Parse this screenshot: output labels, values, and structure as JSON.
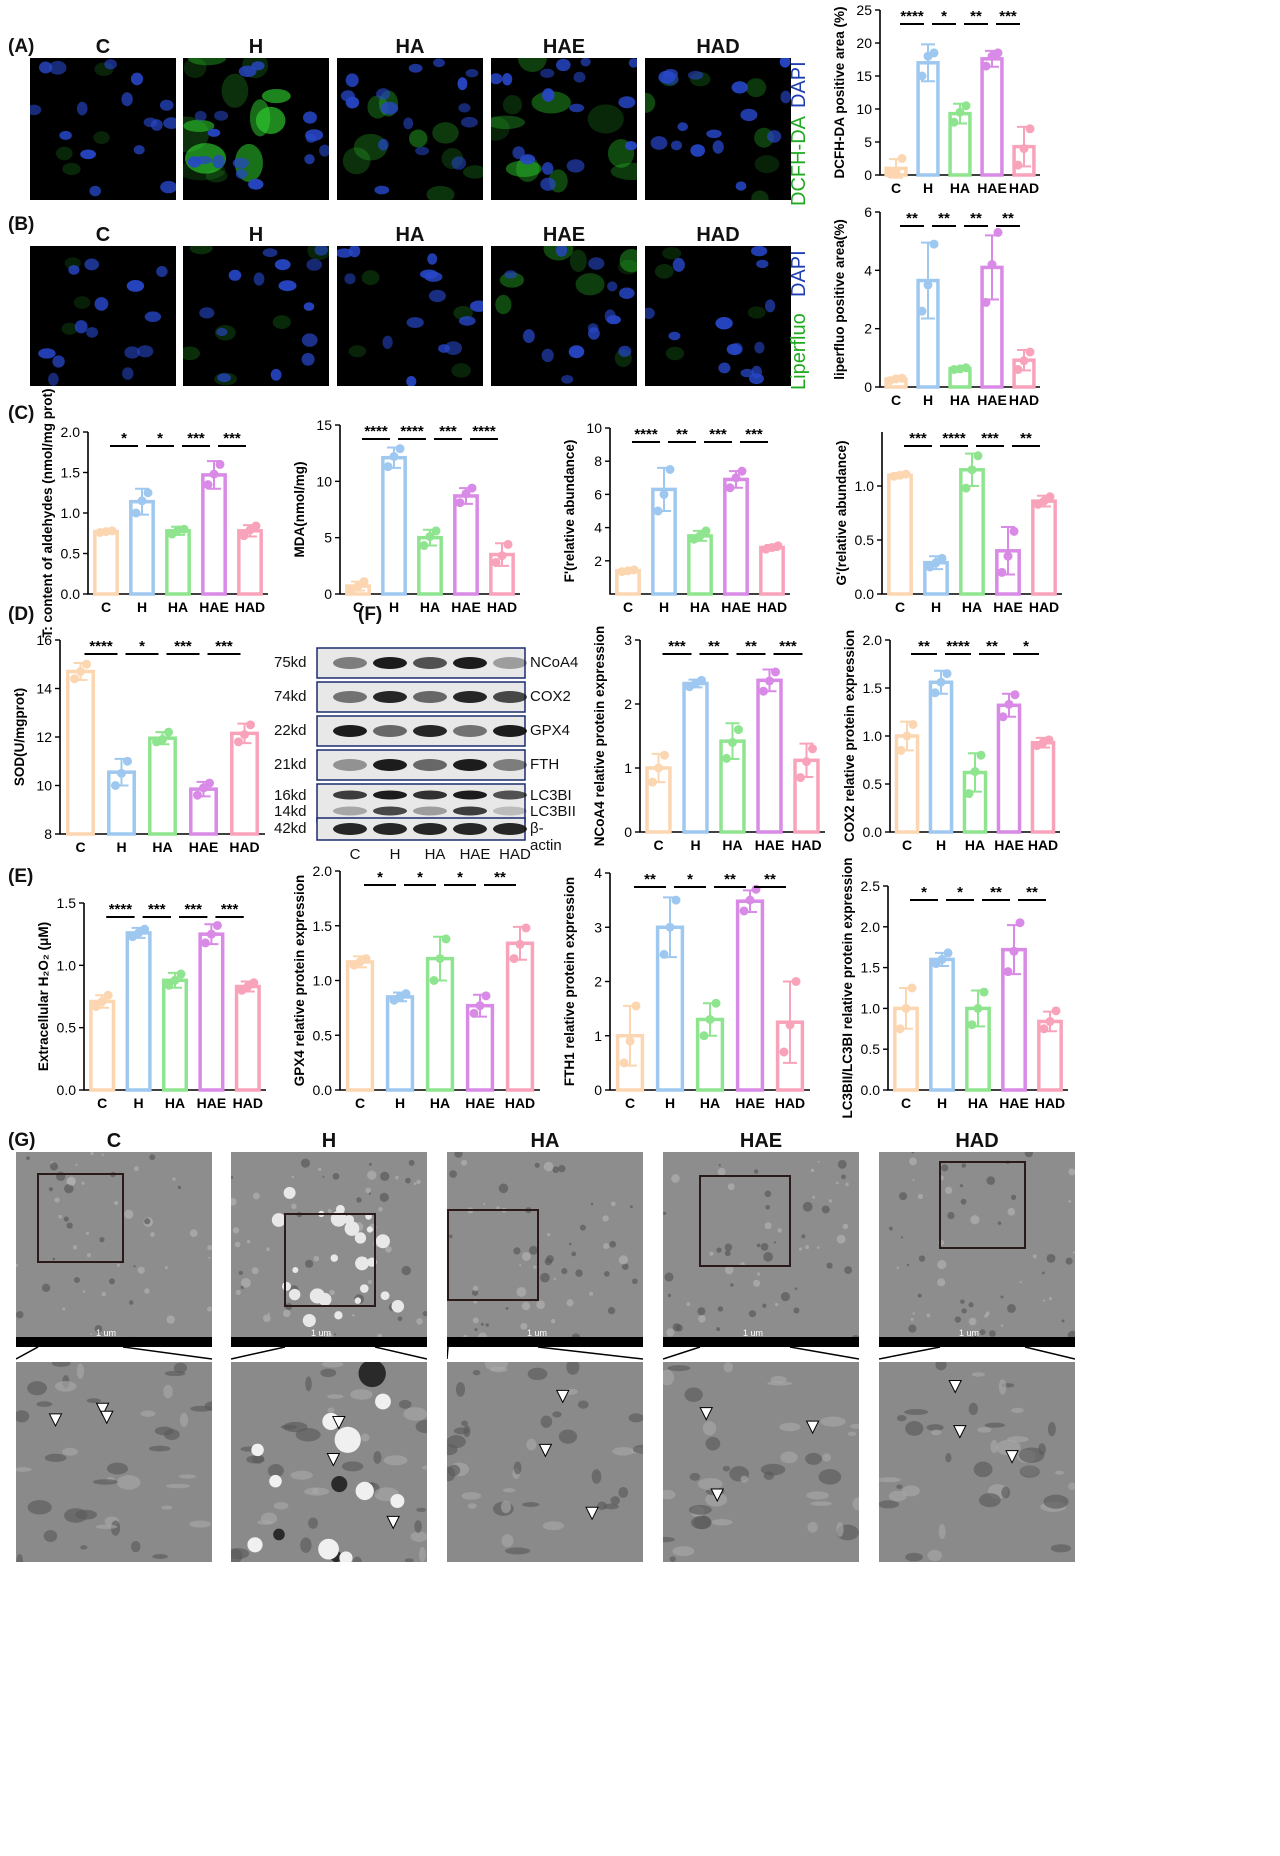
{
  "panel_labels": {
    "A": "(A)",
    "B": "(B)",
    "C": "(C)",
    "D": "(D)",
    "E": "(E)",
    "F": "(F)",
    "G": "(G)"
  },
  "groups": [
    "C",
    "H",
    "HA",
    "HAE",
    "HAD"
  ],
  "colors": {
    "C": "#fcd6b0",
    "H": "#9ec8ef",
    "HA": "#8fe58f",
    "HAE": "#d98ae6",
    "HAD": "#f9a3bb"
  },
  "stain_labels": {
    "A_top": "DAPI",
    "A_bottom": "DCFH-DA",
    "B_top": "DAPI",
    "B_bottom": "Liperfluo"
  },
  "western_blot": {
    "rows": [
      {
        "kd": "75kd",
        "protein": "NCoA4"
      },
      {
        "kd": "74kd",
        "protein": "COX2"
      },
      {
        "kd": "22kd",
        "protein": "GPX4"
      },
      {
        "kd": "21kd",
        "protein": "FTH"
      },
      {
        "kd": "16kd",
        "protein": "LC3BI"
      },
      {
        "kd": "14kd",
        "protein": "LC3BII"
      },
      {
        "kd": "42kd",
        "protein": "β-actin"
      }
    ]
  },
  "scale_bar": "1 um",
  "chart_data": [
    {
      "id": "A",
      "type": "bar",
      "categories": [
        "C",
        "H",
        "HA",
        "HAE",
        "HAD"
      ],
      "ylabel": "DCFH-DA positive area (%)",
      "ylim": [
        0,
        25
      ],
      "yticks": [
        0,
        5,
        10,
        15,
        20,
        25
      ],
      "values": [
        1.0,
        17.0,
        9.3,
        17.6,
        4.3
      ],
      "errors": [
        1.4,
        2.8,
        1.5,
        1.2,
        3.0
      ],
      "points": [
        [
          0.2,
          0.4,
          2.5
        ],
        [
          15,
          18,
          18.5
        ],
        [
          8,
          9.5,
          10.5
        ],
        [
          16.5,
          18,
          18.5
        ],
        [
          1.5,
          4,
          7
        ]
      ],
      "sig": [
        [
          "****",
          0,
          1
        ],
        [
          "*",
          1,
          2
        ],
        [
          "**",
          2,
          3
        ],
        [
          "***",
          3,
          4
        ]
      ]
    },
    {
      "id": "B",
      "type": "bar",
      "categories": [
        "C",
        "H",
        "HA",
        "HAE",
        "HAD"
      ],
      "ylabel": "liperfluo positive area(%)",
      "ylim": [
        0,
        6
      ],
      "yticks": [
        0,
        2,
        4,
        6
      ],
      "values": [
        0.27,
        3.65,
        0.63,
        4.1,
        0.92
      ],
      "errors": [
        0.05,
        1.3,
        0.05,
        1.1,
        0.35
      ],
      "points": [
        [
          0.22,
          0.28,
          0.3
        ],
        [
          2.6,
          3.5,
          4.9
        ],
        [
          0.6,
          0.62,
          0.66
        ],
        [
          2.9,
          4.2,
          5.3
        ],
        [
          0.6,
          0.9,
          1.2
        ]
      ],
      "sig": [
        [
          "**",
          0,
          1
        ],
        [
          "**",
          1,
          2
        ],
        [
          "**",
          2,
          3
        ],
        [
          "**",
          3,
          4
        ]
      ]
    },
    {
      "id": "C1",
      "type": "bar",
      "categories": [
        "C",
        "H",
        "HA",
        "HAE",
        "HAD"
      ],
      "ylabel": "T: content of aldehydes (nmol/mg prot)",
      "ylim": [
        0,
        2.0
      ],
      "yticks": [
        0,
        0.5,
        1.0,
        1.5,
        2.0
      ],
      "values": [
        0.77,
        1.14,
        0.78,
        1.47,
        0.78
      ],
      "errors": [
        0.02,
        0.16,
        0.05,
        0.17,
        0.07
      ],
      "points": [
        [
          0.76,
          0.77,
          0.78
        ],
        [
          1.0,
          1.15,
          1.25
        ],
        [
          0.74,
          0.79,
          0.8
        ],
        [
          1.35,
          1.48,
          1.6
        ],
        [
          0.72,
          0.79,
          0.84
        ]
      ],
      "sig": [
        [
          "*",
          0,
          1
        ],
        [
          "*",
          1,
          2
        ],
        [
          "***",
          2,
          3
        ],
        [
          "***",
          3,
          4
        ]
      ]
    },
    {
      "id": "C2",
      "type": "bar",
      "categories": [
        "C",
        "H",
        "HA",
        "HAE",
        "HAD"
      ],
      "ylabel": "MDA(nmol/mg)",
      "ylim": [
        0,
        15
      ],
      "yticks": [
        0,
        5,
        10,
        15
      ],
      "values": [
        0.7,
        12.1,
        5.0,
        8.7,
        3.5
      ],
      "errors": [
        0.4,
        0.9,
        0.7,
        0.7,
        1.0
      ],
      "points": [
        [
          0.4,
          0.7,
          1.1
        ],
        [
          11.3,
          12.2,
          12.9
        ],
        [
          4.3,
          5.1,
          5.6
        ],
        [
          8.1,
          8.9,
          9.4
        ],
        [
          2.8,
          3.4,
          4.4
        ]
      ],
      "sig": [
        [
          "****",
          0,
          1
        ],
        [
          "****",
          1,
          2
        ],
        [
          "***",
          2,
          3
        ],
        [
          "****",
          3,
          4
        ]
      ]
    },
    {
      "id": "C3",
      "type": "bar",
      "categories": [
        "C",
        "H",
        "HA",
        "HAE",
        "HAD"
      ],
      "ylabel": "F'(relative abundance)",
      "ylim": [
        0,
        10
      ],
      "yticks": [
        2,
        4,
        6,
        8,
        10
      ],
      "values": [
        1.4,
        6.3,
        3.5,
        6.9,
        2.8
      ],
      "errors": [
        0.05,
        1.3,
        0.3,
        0.5,
        0.15
      ],
      "points": [
        [
          1.35,
          1.4,
          1.45
        ],
        [
          5.0,
          6.0,
          7.5
        ],
        [
          3.3,
          3.5,
          3.8
        ],
        [
          6.4,
          7.0,
          7.4
        ],
        [
          2.7,
          2.8,
          2.9
        ]
      ],
      "sig": [
        [
          "****",
          0,
          1
        ],
        [
          "**",
          1,
          2
        ],
        [
          "***",
          2,
          3
        ],
        [
          "***",
          3,
          4
        ]
      ]
    },
    {
      "id": "C4",
      "type": "bar",
      "categories": [
        "C",
        "H",
        "HA",
        "HAE",
        "HAD"
      ],
      "ylabel": "G'(relative abundance)",
      "ylim": [
        0,
        1.5
      ],
      "yticks": [
        0,
        0.5,
        1.0
      ],
      "values": [
        1.1,
        0.29,
        1.15,
        0.4,
        0.86
      ],
      "errors": [
        0.02,
        0.06,
        0.15,
        0.22,
        0.05
      ],
      "points": [
        [
          1.09,
          1.1,
          1.11
        ],
        [
          0.25,
          0.29,
          0.33
        ],
        [
          0.98,
          1.15,
          1.28
        ],
        [
          0.2,
          0.35,
          0.58
        ],
        [
          0.83,
          0.86,
          0.9
        ]
      ],
      "sig": [
        [
          "***",
          0,
          1
        ],
        [
          "****",
          1,
          2
        ],
        [
          "***",
          2,
          3
        ],
        [
          "**",
          3,
          4
        ]
      ]
    },
    {
      "id": "D",
      "type": "bar",
      "categories": [
        "C",
        "H",
        "HA",
        "HAE",
        "HAD"
      ],
      "ylabel": "SOD(U/mgprot)",
      "ylim": [
        8,
        16
      ],
      "yticks": [
        8,
        10,
        12,
        14,
        16
      ],
      "values": [
        14.7,
        10.55,
        11.95,
        9.85,
        12.15
      ],
      "errors": [
        0.35,
        0.55,
        0.25,
        0.3,
        0.4
      ],
      "points": [
        [
          14.4,
          14.7,
          15.0
        ],
        [
          10.0,
          10.5,
          11.0
        ],
        [
          11.8,
          11.9,
          12.2
        ],
        [
          9.6,
          9.9,
          10.1
        ],
        [
          11.8,
          12.1,
          12.5
        ]
      ],
      "sig": [
        [
          "****",
          0,
          1
        ],
        [
          "*",
          1,
          2
        ],
        [
          "***",
          2,
          3
        ],
        [
          "***",
          3,
          4
        ]
      ]
    },
    {
      "id": "F1",
      "type": "bar",
      "categories": [
        "C",
        "H",
        "HA",
        "HAE",
        "HAD"
      ],
      "ylabel": "NCoA4 relative protein expression",
      "ylim": [
        0,
        3
      ],
      "yticks": [
        0,
        1,
        2,
        3
      ],
      "values": [
        1.0,
        2.32,
        1.42,
        2.37,
        1.12
      ],
      "errors": [
        0.22,
        0.06,
        0.28,
        0.17,
        0.26
      ],
      "points": [
        [
          0.78,
          1.0,
          1.2
        ],
        [
          2.27,
          2.32,
          2.37
        ],
        [
          1.15,
          1.4,
          1.6
        ],
        [
          2.2,
          2.36,
          2.5
        ],
        [
          0.85,
          1.1,
          1.3
        ]
      ],
      "sig": [
        [
          "***",
          0,
          1
        ],
        [
          "**",
          1,
          2
        ],
        [
          "**",
          2,
          3
        ],
        [
          "***",
          3,
          4
        ]
      ]
    },
    {
      "id": "F2",
      "type": "bar",
      "categories": [
        "C",
        "H",
        "HA",
        "HAE",
        "HAD"
      ],
      "ylabel": "COX2 relative protein expression",
      "ylim": [
        0,
        2.0
      ],
      "yticks": [
        0,
        0.5,
        1.0,
        1.5,
        2.0
      ],
      "values": [
        1.0,
        1.56,
        0.62,
        1.32,
        0.93
      ],
      "errors": [
        0.15,
        0.12,
        0.2,
        0.12,
        0.05
      ],
      "points": [
        [
          0.85,
          1.0,
          1.12
        ],
        [
          1.45,
          1.56,
          1.65
        ],
        [
          0.4,
          0.63,
          0.8
        ],
        [
          1.2,
          1.33,
          1.43
        ],
        [
          0.9,
          0.93,
          0.96
        ]
      ],
      "sig": [
        [
          "**",
          0,
          1
        ],
        [
          "****",
          1,
          2
        ],
        [
          "**",
          2,
          3
        ],
        [
          "*",
          3,
          4
        ]
      ]
    },
    {
      "id": "E",
      "type": "bar",
      "categories": [
        "C",
        "H",
        "HA",
        "HAE",
        "HAD"
      ],
      "ylabel": "Extracellular H₂O₂ (μM)",
      "ylim": [
        0,
        1.5
      ],
      "yticks": [
        0,
        0.5,
        1.0,
        1.5
      ],
      "values": [
        0.71,
        1.26,
        0.88,
        1.25,
        0.83
      ],
      "errors": [
        0.05,
        0.04,
        0.06,
        0.08,
        0.04
      ],
      "points": [
        [
          0.67,
          0.71,
          0.76
        ],
        [
          1.23,
          1.26,
          1.29
        ],
        [
          0.84,
          0.88,
          0.93
        ],
        [
          1.18,
          1.25,
          1.32
        ],
        [
          0.8,
          0.83,
          0.86
        ]
      ],
      "sig": [
        [
          "****",
          0,
          1
        ],
        [
          "***",
          1,
          2
        ],
        [
          "***",
          2,
          3
        ],
        [
          "***",
          3,
          4
        ]
      ]
    },
    {
      "id": "F3",
      "type": "bar",
      "categories": [
        "C",
        "H",
        "HA",
        "HAE",
        "HAD"
      ],
      "ylabel": "GPX4 relative protein expression",
      "ylim": [
        0,
        2.0
      ],
      "yticks": [
        0,
        0.5,
        1.0,
        1.5,
        2.0
      ],
      "values": [
        1.17,
        0.85,
        1.2,
        0.77,
        1.34
      ],
      "errors": [
        0.05,
        0.04,
        0.2,
        0.1,
        0.15
      ],
      "points": [
        [
          1.14,
          1.17,
          1.2
        ],
        [
          0.82,
          0.85,
          0.88
        ],
        [
          1.0,
          1.2,
          1.38
        ],
        [
          0.7,
          0.77,
          0.86
        ],
        [
          1.2,
          1.33,
          1.48
        ]
      ],
      "sig": [
        [
          "*",
          0,
          1
        ],
        [
          "*",
          1,
          2
        ],
        [
          "*",
          2,
          3
        ],
        [
          "**",
          3,
          4
        ]
      ]
    },
    {
      "id": "F4",
      "type": "bar",
      "categories": [
        "C",
        "H",
        "HA",
        "HAE",
        "HAD"
      ],
      "ylabel": "FTH1 relative protein expression",
      "ylim": [
        0,
        4
      ],
      "yticks": [
        0,
        1,
        2,
        3,
        4
      ],
      "values": [
        1.0,
        3.0,
        1.3,
        3.48,
        1.25
      ],
      "errors": [
        0.55,
        0.55,
        0.3,
        0.2,
        0.75
      ],
      "points": [
        [
          0.5,
          0.9,
          1.55
        ],
        [
          2.5,
          3.0,
          3.5
        ],
        [
          1.0,
          1.3,
          1.6
        ],
        [
          3.3,
          3.5,
          3.7
        ],
        [
          0.7,
          1.2,
          2.0
        ]
      ],
      "sig": [
        [
          "**",
          0,
          1
        ],
        [
          "*",
          1,
          2
        ],
        [
          "**",
          2,
          3
        ],
        [
          "**",
          3,
          4
        ]
      ]
    },
    {
      "id": "F5",
      "type": "bar",
      "categories": [
        "C",
        "H",
        "HA",
        "HAE",
        "HAD"
      ],
      "ylabel": "LC3BII/LC3BI relative protein expression",
      "ylim": [
        0,
        2.5
      ],
      "yticks": [
        0,
        0.5,
        1.0,
        1.5,
        2.0,
        2.5
      ],
      "values": [
        1.0,
        1.6,
        1.0,
        1.72,
        0.84
      ],
      "errors": [
        0.25,
        0.08,
        0.22,
        0.3,
        0.12
      ],
      "points": [
        [
          0.75,
          1.0,
          1.25
        ],
        [
          1.55,
          1.6,
          1.68
        ],
        [
          0.8,
          1.0,
          1.2
        ],
        [
          1.45,
          1.7,
          2.05
        ],
        [
          0.75,
          0.84,
          0.97
        ]
      ],
      "sig": [
        [
          "*",
          0,
          1
        ],
        [
          "*",
          1,
          2
        ],
        [
          "**",
          2,
          3
        ],
        [
          "**",
          3,
          4
        ]
      ]
    }
  ]
}
